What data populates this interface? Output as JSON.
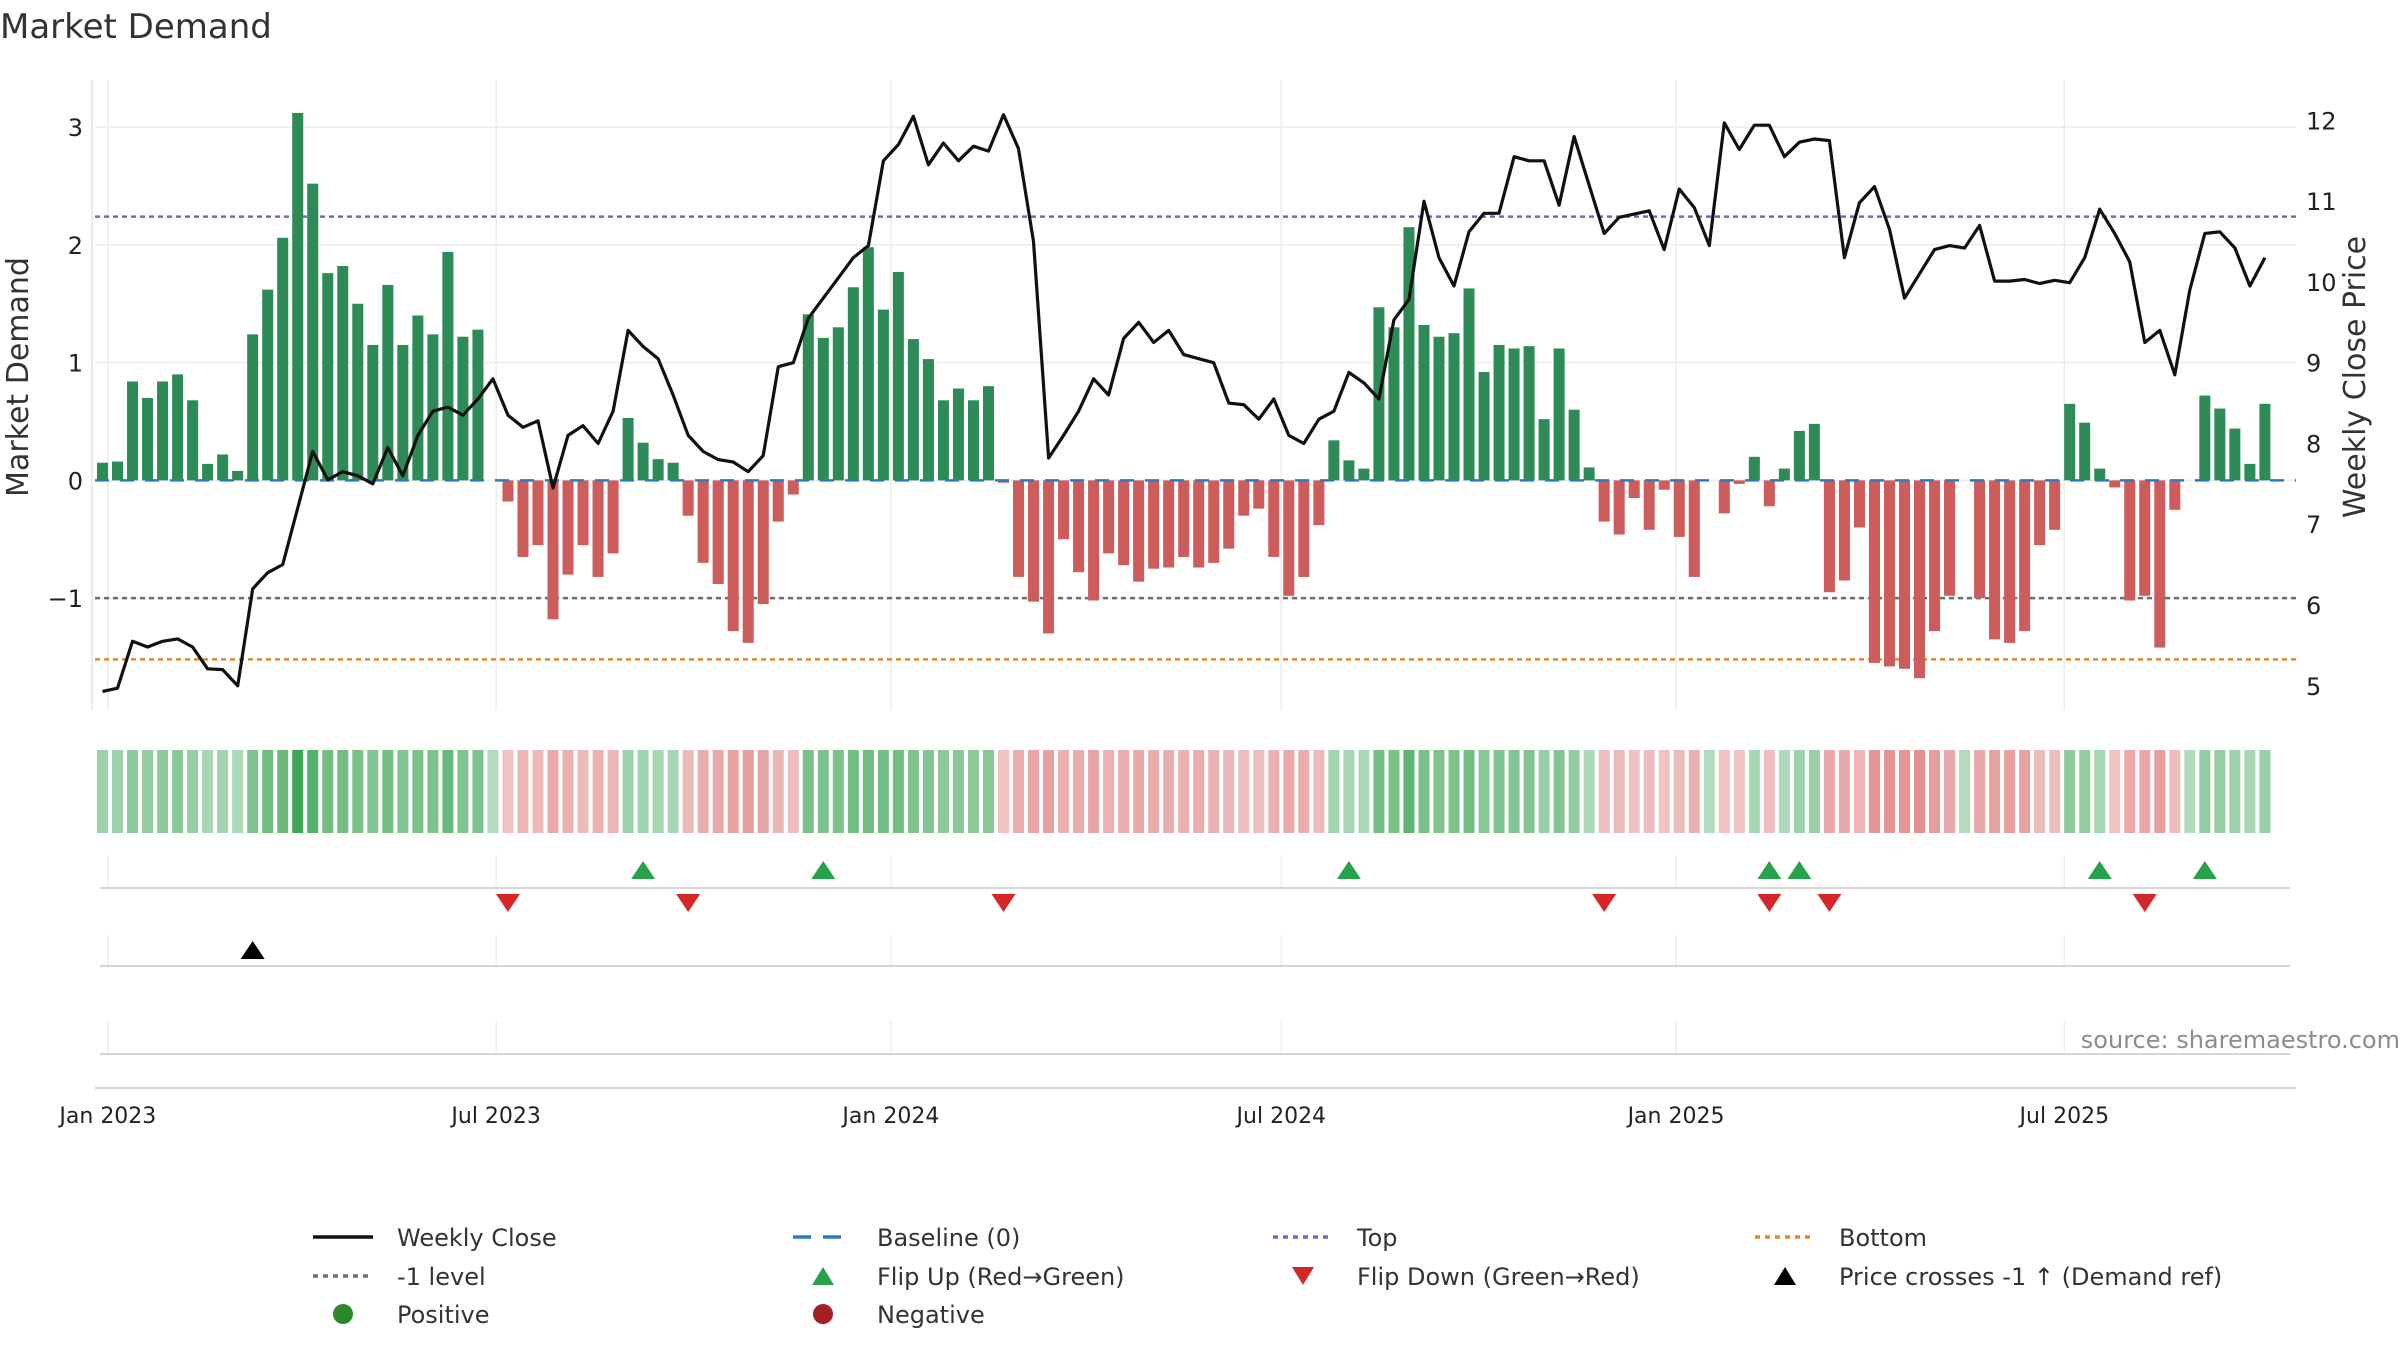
{
  "chart_data": {
    "type": "bar",
    "title": "Market Demand",
    "ylabel": "Market Demand",
    "y2label": "Weekly Close Price",
    "ylim": [
      -1.95,
      3.4
    ],
    "y2lim": [
      4.7,
      12.5
    ],
    "x_start": "2022-12-26",
    "x_end": "2025-10-17",
    "yticks": [
      {
        "v": -1,
        "label": "−1"
      },
      {
        "v": 0,
        "label": "0"
      },
      {
        "v": 1,
        "label": "1"
      },
      {
        "v": 2,
        "label": "2"
      },
      {
        "v": 3,
        "label": "3"
      }
    ],
    "y2ticks": [
      5,
      6,
      7,
      8,
      9,
      10,
      11,
      12
    ],
    "xticks": [
      {
        "date": "2023-01-01",
        "label": "Jan 2023"
      },
      {
        "date": "2023-07-01",
        "label": "Jul 2023"
      },
      {
        "date": "2024-01-01",
        "label": "Jan 2024"
      },
      {
        "date": "2024-07-01",
        "label": "Jul 2024"
      },
      {
        "date": "2025-01-01",
        "label": "Jan 2025"
      },
      {
        "date": "2025-07-01",
        "label": "Jul 2025"
      }
    ],
    "week_start": "2022-12-26",
    "demand": [
      0.15,
      0.16,
      0.84,
      0.7,
      0.84,
      0.9,
      0.68,
      0.14,
      0.22,
      0.08,
      1.24,
      1.62,
      2.06,
      3.12,
      2.52,
      1.76,
      1.82,
      1.5,
      1.15,
      1.66,
      1.15,
      1.4,
      1.24,
      1.94,
      1.22,
      1.28,
      0,
      -0.18,
      -0.65,
      -0.55,
      -1.18,
      -0.8,
      -0.55,
      -0.82,
      -0.62,
      0.53,
      0.32,
      0.18,
      0.15,
      -0.3,
      -0.7,
      -0.88,
      -1.28,
      -1.38,
      -1.05,
      -0.35,
      -0.12,
      1.41,
      1.21,
      1.3,
      1.64,
      1.98,
      1.45,
      1.77,
      1.2,
      1.03,
      0.68,
      0.78,
      0.68,
      0.8,
      -0.02,
      -0.82,
      -1.03,
      -1.3,
      -0.5,
      -0.78,
      -1.02,
      -0.62,
      -0.72,
      -0.86,
      -0.75,
      -0.74,
      -0.65,
      -0.74,
      -0.7,
      -0.58,
      -0.3,
      -0.24,
      -0.65,
      -0.98,
      -0.82,
      -0.38,
      0.34,
      0.17,
      0.1,
      1.47,
      1.3,
      2.15,
      1.32,
      1.22,
      1.25,
      1.63,
      0.92,
      1.15,
      1.12,
      1.14,
      0.52,
      1.12,
      0.6,
      0.11,
      -0.35,
      -0.46,
      -0.15,
      -0.42,
      -0.08,
      -0.48,
      -0.82,
      0,
      -0.28,
      -0.03,
      0.2,
      -0.22,
      0.1,
      0.42,
      0.48,
      -0.95,
      -0.85,
      -0.4,
      -1.55,
      -1.58,
      -1.6,
      -1.68,
      -1.28,
      -0.98,
      0,
      -1.0,
      -1.35,
      -1.38,
      -1.28,
      -0.55,
      -0.42,
      0.65,
      0.49,
      0.1,
      -0.06,
      -1.02,
      -0.98,
      -1.42,
      -0.25,
      0,
      0.72,
      0.61,
      0.44,
      0.14,
      0.65
    ],
    "close": [
      4.93,
      4.97,
      5.55,
      5.48,
      5.55,
      5.58,
      5.48,
      5.21,
      5.2,
      5.0,
      6.2,
      6.4,
      6.5,
      7.2,
      7.9,
      7.55,
      7.65,
      7.6,
      7.5,
      7.95,
      7.6,
      8.1,
      8.4,
      8.45,
      8.35,
      8.55,
      8.8,
      8.35,
      8.2,
      8.28,
      7.45,
      8.1,
      8.22,
      8.0,
      8.4,
      9.4,
      9.2,
      9.05,
      8.6,
      8.1,
      7.9,
      7.8,
      7.77,
      7.65,
      7.85,
      8.95,
      9.0,
      9.55,
      9.8,
      10.05,
      10.3,
      10.45,
      11.5,
      11.7,
      12.05,
      11.45,
      11.72,
      11.5,
      11.68,
      11.62,
      12.07,
      11.65,
      10.5,
      7.82,
      8.1,
      8.4,
      8.8,
      8.6,
      9.3,
      9.5,
      9.25,
      9.4,
      9.1,
      9.05,
      9.0,
      8.5,
      8.48,
      8.3,
      8.55,
      8.1,
      8.0,
      8.3,
      8.4,
      8.88,
      8.75,
      8.55,
      9.53,
      9.78,
      11.0,
      10.3,
      9.95,
      10.62,
      10.85,
      10.85,
      11.55,
      11.5,
      11.5,
      10.95,
      11.8,
      11.2,
      10.6,
      10.8,
      10.84,
      10.88,
      10.4,
      11.15,
      10.92,
      10.45,
      11.97,
      11.64,
      11.94,
      11.94,
      11.55,
      11.73,
      11.77,
      11.75,
      10.3,
      10.98,
      11.18,
      10.65,
      9.8,
      10.1,
      10.4,
      10.45,
      10.42,
      10.7,
      10.01,
      10.01,
      10.03,
      9.98,
      10.02,
      9.99,
      10.3,
      10.9,
      10.6,
      10.25,
      9.25,
      9.4,
      8.85,
      9.9,
      10.6,
      10.62,
      10.42,
      9.95,
      10.3
    ],
    "strength_band": [
      0.5,
      0.5,
      0.65,
      0.6,
      0.65,
      0.67,
      0.58,
      0.4,
      0.45,
      0.35,
      0.8,
      0.95,
      1.0,
      1.4,
      1.2,
      0.9,
      0.92,
      0.85,
      0.75,
      0.9,
      0.75,
      0.85,
      0.8,
      1.0,
      0.75,
      0.8,
      0.3,
      0.3,
      0.45,
      0.4,
      0.6,
      0.5,
      0.4,
      0.5,
      0.45,
      0.5,
      0.45,
      0.4,
      0.4,
      0.4,
      0.55,
      0.6,
      0.7,
      0.75,
      0.65,
      0.45,
      0.35,
      0.85,
      0.8,
      0.82,
      0.9,
      0.95,
      0.9,
      0.92,
      0.8,
      0.75,
      0.65,
      0.7,
      0.65,
      0.7,
      0.3,
      0.55,
      0.65,
      0.7,
      0.5,
      0.55,
      0.65,
      0.5,
      0.55,
      0.6,
      0.55,
      0.55,
      0.5,
      0.55,
      0.5,
      0.45,
      0.35,
      0.35,
      0.5,
      0.6,
      0.55,
      0.4,
      0.45,
      0.4,
      0.35,
      0.9,
      0.85,
      1.1,
      0.85,
      0.8,
      0.82,
      0.9,
      0.7,
      0.78,
      0.75,
      0.76,
      0.55,
      0.75,
      0.6,
      0.35,
      0.35,
      0.4,
      0.3,
      0.35,
      0.3,
      0.4,
      0.5,
      0.3,
      0.3,
      0.3,
      0.4,
      0.35,
      0.35,
      0.5,
      0.55,
      0.6,
      0.6,
      0.45,
      0.85,
      0.85,
      0.85,
      0.9,
      0.75,
      0.6,
      0.3,
      0.6,
      0.7,
      0.72,
      0.7,
      0.4,
      0.35,
      0.65,
      0.6,
      0.4,
      0.3,
      0.6,
      0.6,
      0.75,
      0.35,
      0.3,
      0.6,
      0.55,
      0.5,
      0.4,
      0.55
    ],
    "flip_up_weeks": [
      36,
      48,
      83,
      111,
      113,
      133,
      140
    ],
    "flip_down_weeks": [
      27,
      39,
      60,
      100,
      111,
      115,
      136
    ],
    "price_cross_weeks": [
      10
    ],
    "reference_lines": [
      {
        "name": "Top",
        "value": 2.24,
        "color": "#6b6bbd"
      },
      {
        "name": "-1 level",
        "value": -1,
        "color": "#6e6e6e"
      },
      {
        "name": "Bottom",
        "value": -1.52,
        "color": "#e0892d"
      }
    ],
    "source": "source: sharemaestro.com",
    "legend": [
      {
        "label": "Weekly Close",
        "kind": "line",
        "color": "#111111"
      },
      {
        "label": "Baseline (0)",
        "kind": "dash",
        "color": "#2b7bbd"
      },
      {
        "label": "Top",
        "kind": "dot",
        "color": "#6b6bbd"
      },
      {
        "label": "Bottom",
        "kind": "dot",
        "color": "#e0892d"
      },
      {
        "label": "-1 level",
        "kind": "dot",
        "color": "#6e6e6e"
      },
      {
        "label": "Flip Up (Red→Green)",
        "kind": "tri-up",
        "color": "#26a34a"
      },
      {
        "label": "Flip Down (Green→Red)",
        "kind": "tri-down",
        "color": "#d62728"
      },
      {
        "label": "Price crosses -1 ↑ (Demand ref)",
        "kind": "tri-up",
        "color": "#000000"
      },
      {
        "label": "Positive",
        "kind": "circle",
        "color": "#2a8a2a"
      },
      {
        "label": "Negative",
        "kind": "circle",
        "color": "#a52020"
      }
    ],
    "colors": {
      "positive_bar": "#2e8b57",
      "negative_bar": "#cd5c5c",
      "price_line": "#111111",
      "baseline": "#2b7bbd",
      "band_positive": "#2e9e48",
      "band_negative": "#d55a5a"
    }
  }
}
